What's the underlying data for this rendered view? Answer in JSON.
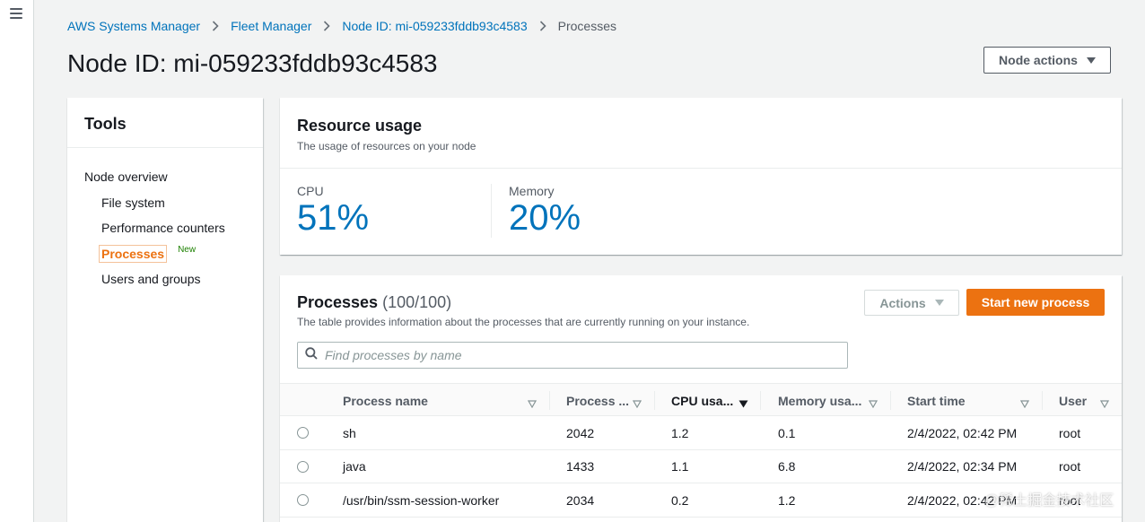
{
  "breadcrumb": {
    "items": [
      "AWS Systems Manager",
      "Fleet Manager",
      "Node ID: mi-059233fddb93c4583"
    ],
    "current": "Processes"
  },
  "page": {
    "title": "Node ID: mi-059233fddb93c4583",
    "node_actions_label": "Node actions"
  },
  "tools": {
    "title": "Tools",
    "root": "Node overview",
    "items": [
      "File system",
      "Performance counters",
      "Processes",
      "Users and groups"
    ],
    "active_index": 2,
    "new_badge": "New"
  },
  "resource_usage": {
    "title": "Resource usage",
    "description": "The usage of resources on your node",
    "cpu_label": "CPU",
    "cpu_value": "51%",
    "memory_label": "Memory",
    "memory_value": "20%"
  },
  "processes": {
    "title": "Processes",
    "count": "(100/100)",
    "description": "The table provides information about the processes that are currently running on your instance.",
    "actions_label": "Actions",
    "start_label": "Start new process",
    "search_placeholder": "Find processes by name",
    "columns": [
      "Process name",
      "Process ...",
      "CPU usa...",
      "Memory usa...",
      "Start time",
      "User"
    ],
    "sorted_column": "CPU usa...",
    "rows": [
      {
        "name": "sh",
        "pid": "2042",
        "cpu": "1.2",
        "memory": "0.1",
        "start": "2/4/2022, 02:42 PM",
        "user": "root"
      },
      {
        "name": "java",
        "pid": "1433",
        "cpu": "1.1",
        "memory": "6.8",
        "start": "2/4/2022, 02:34 PM",
        "user": "root"
      },
      {
        "name": "/usr/bin/ssm-session-worker",
        "pid": "2034",
        "cpu": "0.2",
        "memory": "1.2",
        "start": "2/4/2022, 02:42 PM",
        "user": "root"
      }
    ]
  },
  "watermark": "@稀土掘金技术社区",
  "colors": {
    "link": "#0073bb",
    "primary_button": "#ec7211",
    "metric": "#0073bb",
    "new_badge": "#1d8102"
  }
}
